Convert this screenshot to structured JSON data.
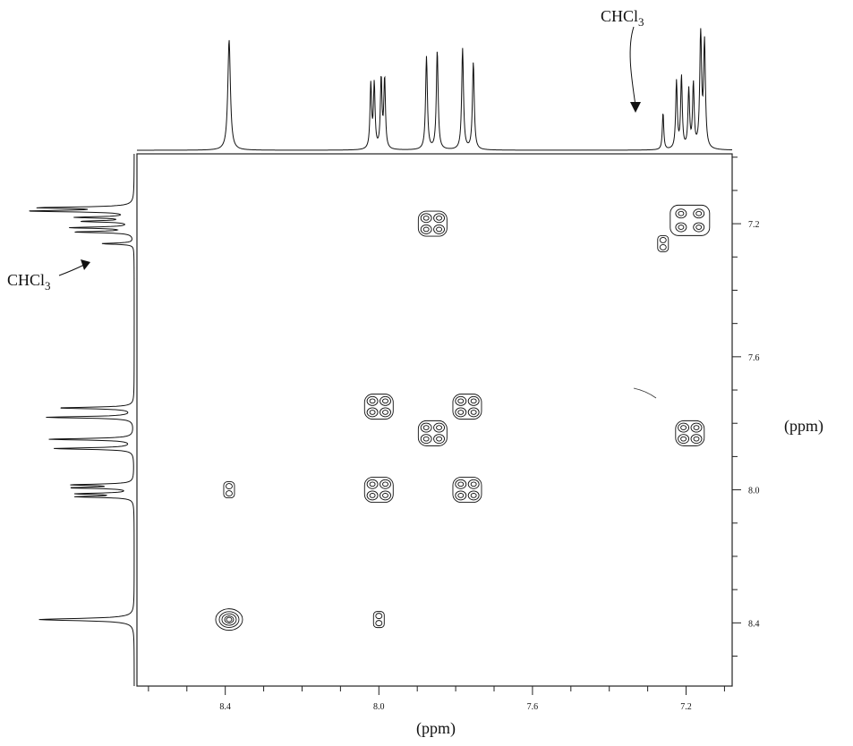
{
  "chart_data": {
    "type": "2D NMR COSY contour plot",
    "xlabel": "(ppm)",
    "ylabel": "(ppm)",
    "x_axis": {
      "range": [
        8.63,
        7.08
      ],
      "reversed": true,
      "major_ticks": [
        8.4,
        8.0,
        7.6,
        7.2
      ],
      "tick_labels": [
        "8.4",
        "8.0",
        "7.6",
        "7.2"
      ],
      "minor_step": 0.1
    },
    "y_axis": {
      "range": [
        6.99,
        8.59
      ],
      "reversed": true,
      "major_ticks": [
        7.2,
        7.6,
        8.0,
        8.4
      ],
      "tick_labels": [
        "7.2",
        "7.6",
        "8.0",
        "8.4"
      ],
      "minor_step": 0.1,
      "position": "right"
    },
    "annotations": [
      {
        "text": "CHCl",
        "subscript": "3",
        "at": "top spectrum",
        "ppm": 7.26
      },
      {
        "text": "CHCl",
        "subscript": "3",
        "at": "left spectrum",
        "ppm": 7.26
      }
    ],
    "peaks_1d": [
      {
        "ppm": 8.39,
        "height": 0.95,
        "width": 0.004
      },
      {
        "ppm": 8.021,
        "height": 0.55,
        "width": 0.0025
      },
      {
        "ppm": 8.012,
        "height": 0.55,
        "width": 0.0025
      },
      {
        "ppm": 7.994,
        "height": 0.6,
        "width": 0.0025
      },
      {
        "ppm": 7.985,
        "height": 0.6,
        "width": 0.0025
      },
      {
        "ppm": 7.876,
        "height": 0.8,
        "width": 0.0028
      },
      {
        "ppm": 7.848,
        "height": 0.85,
        "width": 0.0028
      },
      {
        "ppm": 7.782,
        "height": 0.87,
        "width": 0.0028
      },
      {
        "ppm": 7.754,
        "height": 0.75,
        "width": 0.0028
      },
      {
        "ppm": 7.26,
        "height": 0.32,
        "width": 0.0022
      },
      {
        "ppm": 7.225,
        "height": 0.58,
        "width": 0.0025
      },
      {
        "ppm": 7.212,
        "height": 0.62,
        "width": 0.0025
      },
      {
        "ppm": 7.193,
        "height": 0.5,
        "width": 0.0025
      },
      {
        "ppm": 7.181,
        "height": 0.55,
        "width": 0.0025
      },
      {
        "ppm": 7.162,
        "height": 1.0,
        "width": 0.0028
      },
      {
        "ppm": 7.152,
        "height": 0.9,
        "width": 0.0028
      }
    ],
    "cross_peaks": [
      {
        "x": 8.39,
        "y": 8.39,
        "shape": "round"
      },
      {
        "x": 8.39,
        "y": 8.0,
        "shape": "small"
      },
      {
        "x": 8.0,
        "y": 8.39,
        "shape": "small"
      },
      {
        "x": 8.0,
        "y": 7.75,
        "shape": "multiplet"
      },
      {
        "x": 8.0,
        "y": 8.0,
        "shape": "multiplet"
      },
      {
        "x": 7.86,
        "y": 7.2,
        "shape": "multiplet"
      },
      {
        "x": 7.86,
        "y": 7.83,
        "shape": "multiplet"
      },
      {
        "x": 7.77,
        "y": 7.75,
        "shape": "multiplet"
      },
      {
        "x": 7.77,
        "y": 8.0,
        "shape": "multiplet"
      },
      {
        "x": 7.19,
        "y": 7.19,
        "shape": "large"
      },
      {
        "x": 7.19,
        "y": 7.83,
        "shape": "multiplet"
      },
      {
        "x": 7.26,
        "y": 7.26,
        "shape": "small"
      }
    ]
  }
}
